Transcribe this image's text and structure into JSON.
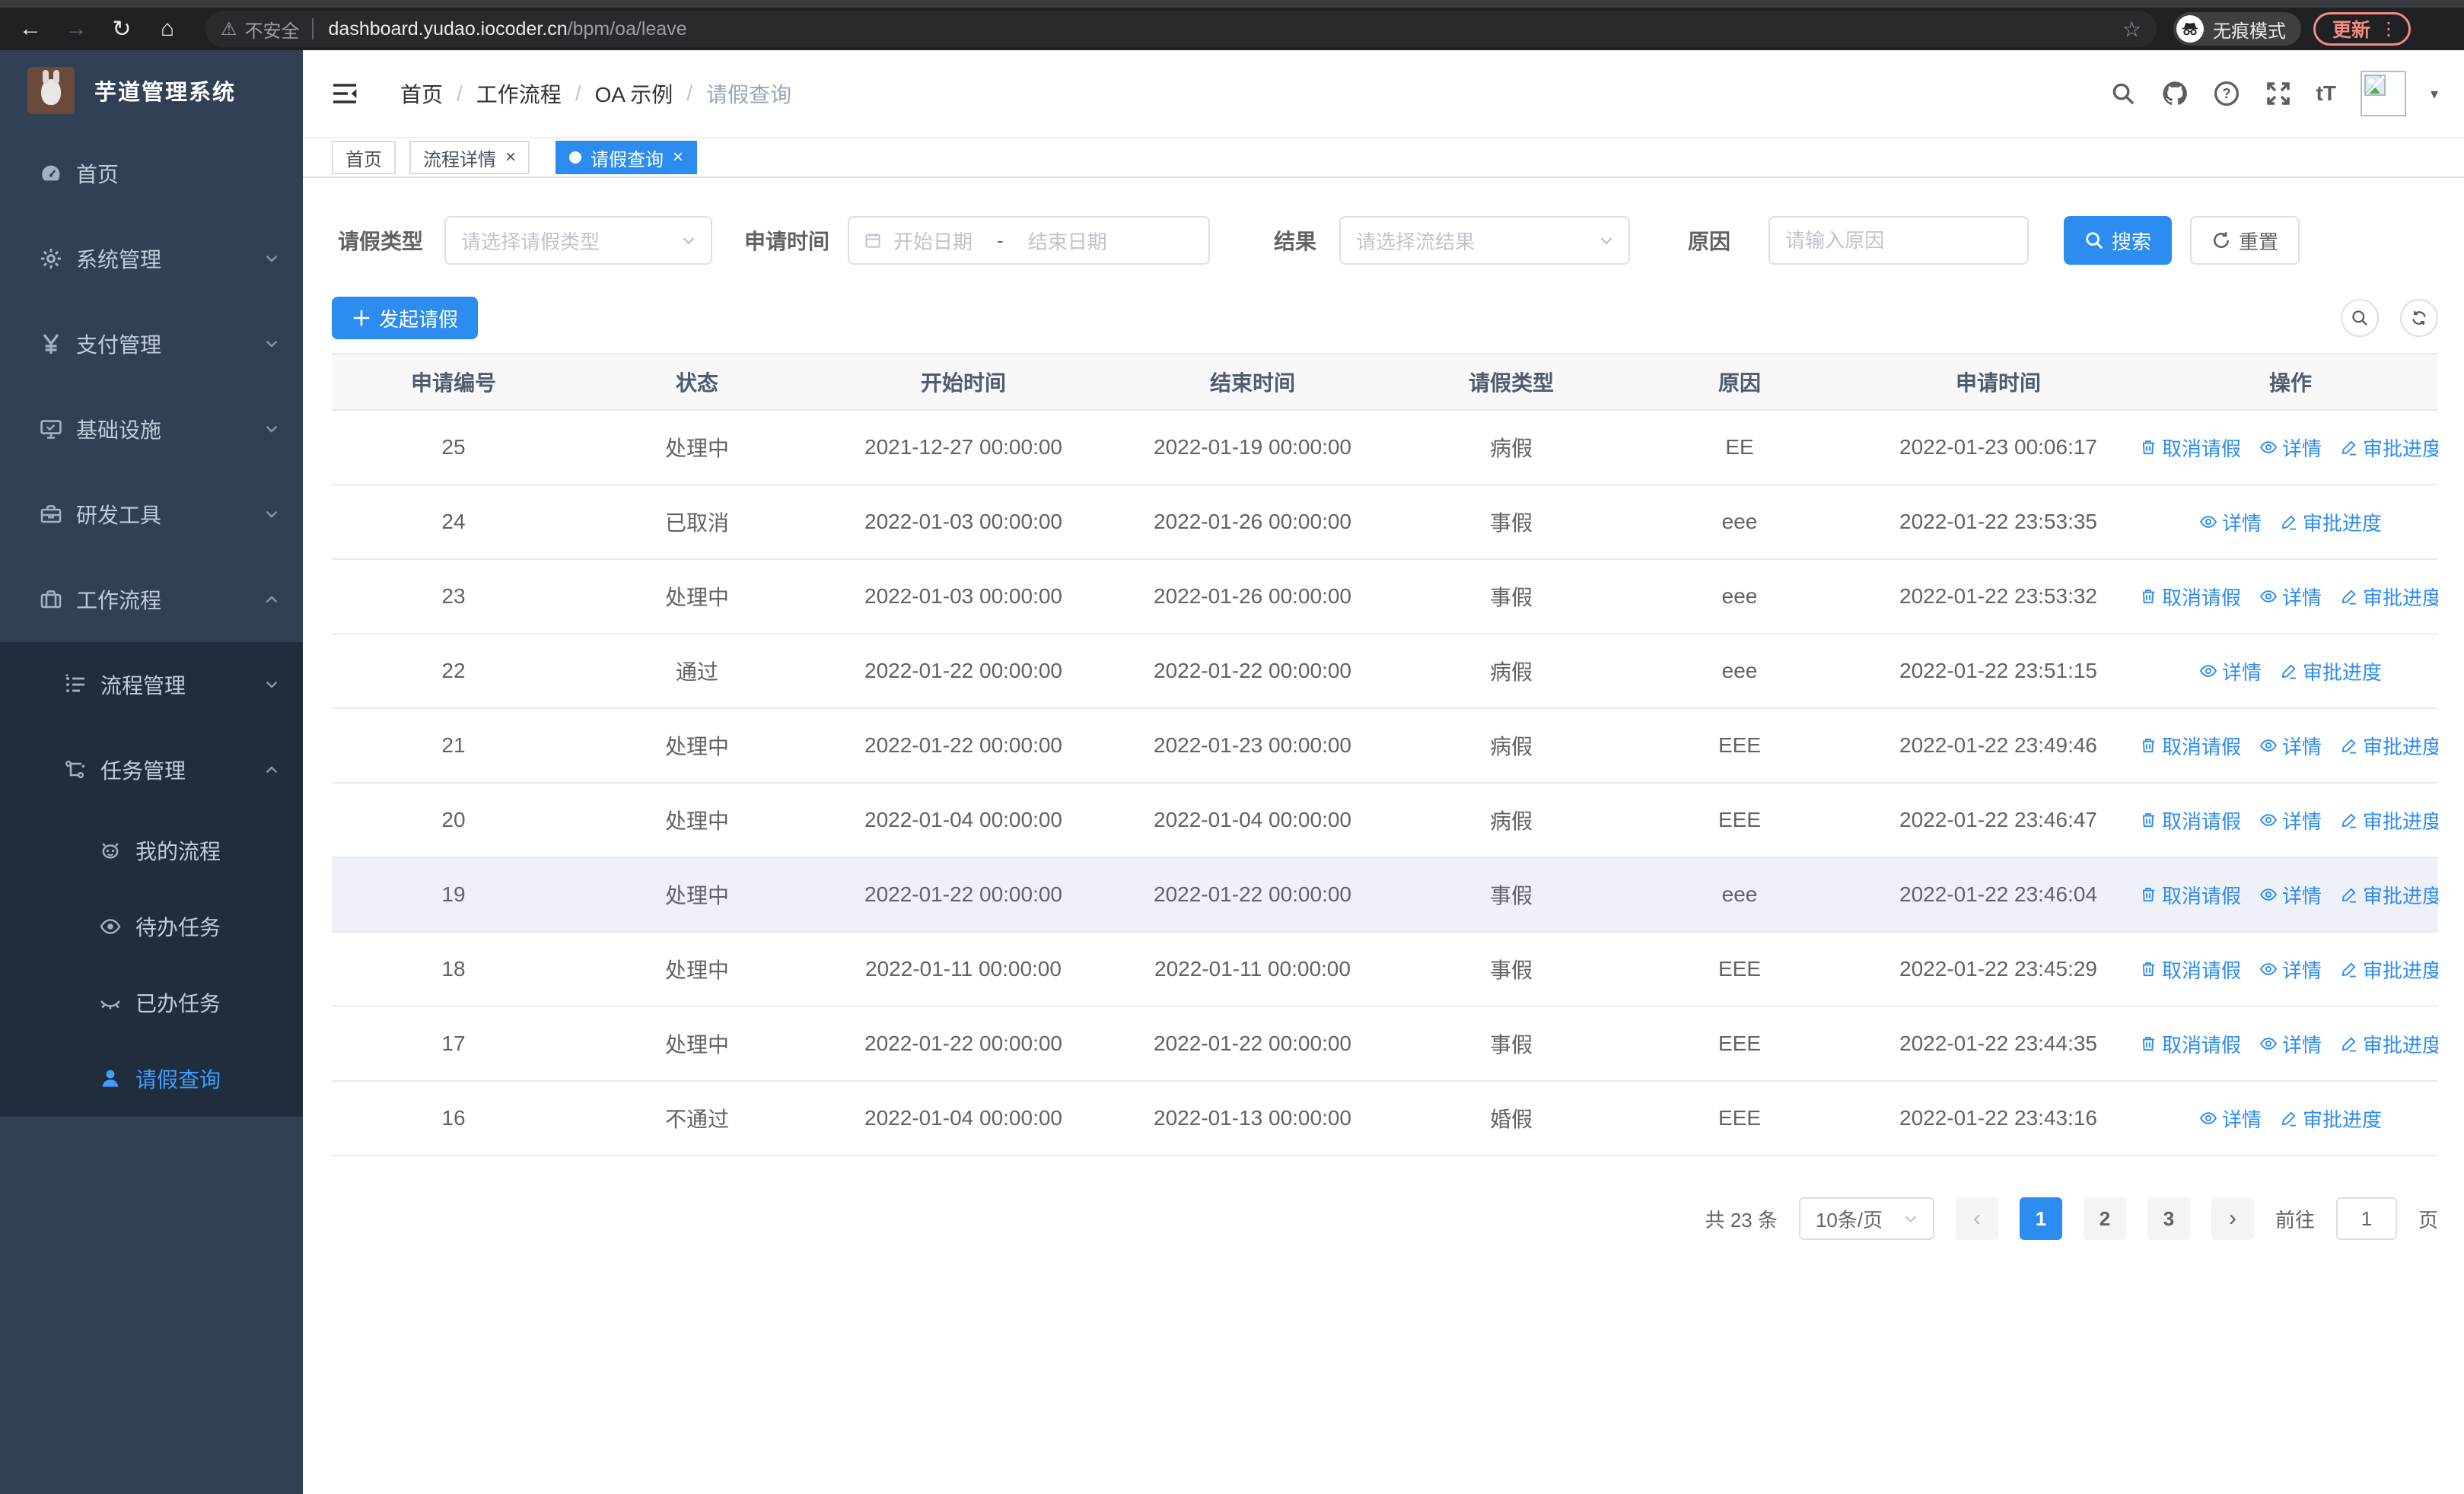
{
  "colors": {
    "accent": "#2d8cf0",
    "sidebar_bg": "#304156",
    "submenu_bg": "#1f2d3d",
    "sidebar_active": "#409eff",
    "update_button": "#f28b82"
  },
  "browser": {
    "security_label": "不安全",
    "url_host": "dashboard.yudao.iocoder.cn",
    "url_path": "/bpm/oa/leave",
    "incognito_label": "无痕模式",
    "update_label": "更新"
  },
  "sidebar": {
    "title": "芋道管理系统",
    "items": [
      {
        "label": "首页",
        "icon": "dashboard-icon",
        "level": 1,
        "expand": null,
        "dark": false,
        "active": false
      },
      {
        "label": "系统管理",
        "icon": "gear-icon",
        "level": 1,
        "expand": "down",
        "dark": false,
        "active": false
      },
      {
        "label": "支付管理",
        "icon": "yen-icon",
        "level": 1,
        "expand": "down",
        "dark": false,
        "active": false
      },
      {
        "label": "基础设施",
        "icon": "monitor-icon",
        "level": 1,
        "expand": "down",
        "dark": false,
        "active": false
      },
      {
        "label": "研发工具",
        "icon": "toolbox-icon",
        "level": 1,
        "expand": "down",
        "dark": false,
        "active": false
      },
      {
        "label": "工作流程",
        "icon": "briefcase-icon",
        "level": 1,
        "expand": "up",
        "dark": false,
        "active": false
      },
      {
        "label": "流程管理",
        "icon": "list-icon",
        "level": 2,
        "expand": "down",
        "dark": true,
        "active": false
      },
      {
        "label": "任务管理",
        "icon": "tree-icon",
        "level": 2,
        "expand": "up",
        "dark": true,
        "active": false
      },
      {
        "label": "我的流程",
        "icon": "robot-icon",
        "level": 3,
        "expand": null,
        "dark": true,
        "active": false
      },
      {
        "label": "待办任务",
        "icon": "eye-icon",
        "level": 3,
        "expand": null,
        "dark": true,
        "active": false
      },
      {
        "label": "已办任务",
        "icon": "eye-closed-icon",
        "level": 3,
        "expand": null,
        "dark": true,
        "active": false
      },
      {
        "label": "请假查询",
        "icon": "user-icon",
        "level": 3,
        "expand": null,
        "dark": true,
        "active": true
      }
    ]
  },
  "header": {
    "breadcrumb": [
      "首页",
      "工作流程",
      "OA 示例",
      "请假查询"
    ],
    "font_size_icon_text": "tT"
  },
  "tabs": [
    {
      "label": "首页",
      "closable": false,
      "active": false
    },
    {
      "label": "流程详情",
      "closable": true,
      "active": false
    },
    {
      "label": "请假查询",
      "closable": true,
      "active": true
    }
  ],
  "filters": {
    "leave_type_label": "请假类型",
    "leave_type_placeholder": "请选择请假类型",
    "apply_time_label": "申请时间",
    "start_date_placeholder": "开始日期",
    "date_separator": "-",
    "end_date_placeholder": "结束日期",
    "result_label": "结果",
    "result_placeholder": "请选择流结果",
    "reason_label": "原因",
    "reason_placeholder": "请输入原因",
    "search_label": "搜索",
    "reset_label": "重置"
  },
  "toolbar": {
    "create_label": "发起请假"
  },
  "table": {
    "columns": [
      "申请编号",
      "状态",
      "开始时间",
      "结束时间",
      "请假类型",
      "原因",
      "申请时间",
      "操作"
    ],
    "action_labels": {
      "cancel": "取消请假",
      "detail": "详情",
      "progress": "审批进度"
    },
    "rows": [
      {
        "id": "25",
        "status": "处理中",
        "start": "2021-12-27 00:00:00",
        "end": "2022-01-19 00:00:00",
        "type": "病假",
        "reason": "EE",
        "applied": "2022-01-23 00:06:17",
        "actions": [
          "cancel",
          "detail",
          "progress"
        ],
        "highlight": false
      },
      {
        "id": "24",
        "status": "已取消",
        "start": "2022-01-03 00:00:00",
        "end": "2022-01-26 00:00:00",
        "type": "事假",
        "reason": "eee",
        "applied": "2022-01-22 23:53:35",
        "actions": [
          "detail",
          "progress"
        ],
        "highlight": false
      },
      {
        "id": "23",
        "status": "处理中",
        "start": "2022-01-03 00:00:00",
        "end": "2022-01-26 00:00:00",
        "type": "事假",
        "reason": "eee",
        "applied": "2022-01-22 23:53:32",
        "actions": [
          "cancel",
          "detail",
          "progress"
        ],
        "highlight": false
      },
      {
        "id": "22",
        "status": "通过",
        "start": "2022-01-22 00:00:00",
        "end": "2022-01-22 00:00:00",
        "type": "病假",
        "reason": "eee",
        "applied": "2022-01-22 23:51:15",
        "actions": [
          "detail",
          "progress"
        ],
        "highlight": false
      },
      {
        "id": "21",
        "status": "处理中",
        "start": "2022-01-22 00:00:00",
        "end": "2022-01-23 00:00:00",
        "type": "病假",
        "reason": "EEE",
        "applied": "2022-01-22 23:49:46",
        "actions": [
          "cancel",
          "detail",
          "progress"
        ],
        "highlight": false
      },
      {
        "id": "20",
        "status": "处理中",
        "start": "2022-01-04 00:00:00",
        "end": "2022-01-04 00:00:00",
        "type": "病假",
        "reason": "EEE",
        "applied": "2022-01-22 23:46:47",
        "actions": [
          "cancel",
          "detail",
          "progress"
        ],
        "highlight": false
      },
      {
        "id": "19",
        "status": "处理中",
        "start": "2022-01-22 00:00:00",
        "end": "2022-01-22 00:00:00",
        "type": "事假",
        "reason": "eee",
        "applied": "2022-01-22 23:46:04",
        "actions": [
          "cancel",
          "detail",
          "progress"
        ],
        "highlight": true
      },
      {
        "id": "18",
        "status": "处理中",
        "start": "2022-01-11 00:00:00",
        "end": "2022-01-11 00:00:00",
        "type": "事假",
        "reason": "EEE",
        "applied": "2022-01-22 23:45:29",
        "actions": [
          "cancel",
          "detail",
          "progress"
        ],
        "highlight": false
      },
      {
        "id": "17",
        "status": "处理中",
        "start": "2022-01-22 00:00:00",
        "end": "2022-01-22 00:00:00",
        "type": "事假",
        "reason": "EEE",
        "applied": "2022-01-22 23:44:35",
        "actions": [
          "cancel",
          "detail",
          "progress"
        ],
        "highlight": false
      },
      {
        "id": "16",
        "status": "不通过",
        "start": "2022-01-04 00:00:00",
        "end": "2022-01-13 00:00:00",
        "type": "婚假",
        "reason": "EEE",
        "applied": "2022-01-22 23:43:16",
        "actions": [
          "detail",
          "progress"
        ],
        "highlight": false
      }
    ]
  },
  "pagination": {
    "total_label": "共 23 条",
    "page_size_label": "10条/页",
    "pages": [
      "1",
      "2",
      "3"
    ],
    "active_page": "1",
    "goto_label": "前往",
    "goto_value": "1",
    "page_suffix": "页"
  }
}
